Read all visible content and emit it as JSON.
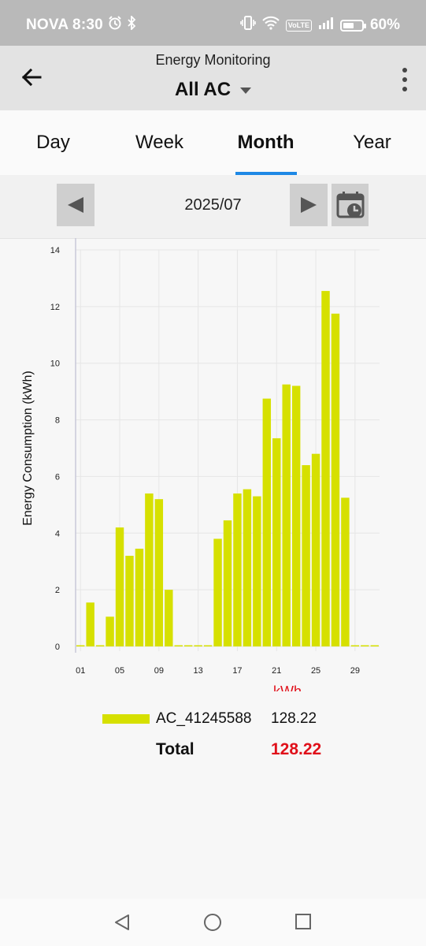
{
  "status_bar": {
    "carrier_time": "NOVA 8:30",
    "volte": "VoLTE",
    "battery": "60%",
    "battery_level": 0.6,
    "icons": [
      "alarm-icon",
      "bluetooth-icon",
      "vibrate-icon",
      "wifi-icon",
      "signal-icon",
      "battery-icon"
    ]
  },
  "app_bar": {
    "title": "Energy Monitoring",
    "selector": "All AC"
  },
  "tabs": [
    {
      "label": "Day",
      "active": false
    },
    {
      "label": "Week",
      "active": false
    },
    {
      "label": "Month",
      "active": true
    },
    {
      "label": "Year",
      "active": false
    }
  ],
  "date_nav": {
    "date": "2025/07"
  },
  "colors": {
    "bar": "#d6e000",
    "accent": "#1e88e5",
    "total": "#e0101a",
    "unit": "#e0101a"
  },
  "chart_data": {
    "type": "bar",
    "ylabel": "Energy Consumption (kWh)",
    "unit_label": "kWh",
    "ylim": [
      0,
      14
    ],
    "y_ticks": [
      "0",
      "2",
      "4",
      "6",
      "8",
      "10",
      "12",
      "14"
    ],
    "x_ticks": [
      "01",
      "05",
      "09",
      "13",
      "17",
      "21",
      "25",
      "29"
    ],
    "grid": true,
    "categories": [
      "01",
      "02",
      "03",
      "04",
      "05",
      "06",
      "07",
      "08",
      "09",
      "10",
      "11",
      "12",
      "13",
      "14",
      "15",
      "16",
      "17",
      "18",
      "19",
      "20",
      "21",
      "22",
      "23",
      "24",
      "25",
      "26",
      "27",
      "28",
      "29",
      "30",
      "31"
    ],
    "series": [
      {
        "name": "AC_41245588",
        "values": [
          0,
          1.55,
          0,
          1.05,
          4.2,
          3.2,
          3.45,
          5.4,
          5.2,
          2.0,
          0,
          0,
          0,
          0,
          3.8,
          4.45,
          5.4,
          5.55,
          5.3,
          8.75,
          7.35,
          9.25,
          9.2,
          6.4,
          6.8,
          12.55,
          11.75,
          5.25,
          0,
          0,
          0
        ]
      }
    ]
  },
  "legend": {
    "series_name": "AC_41245588",
    "series_value": "128.22",
    "total_label": "Total",
    "total_value": "128.22"
  },
  "nav_bar": {
    "icons": [
      "back-nav-icon",
      "home-nav-icon",
      "recents-nav-icon"
    ]
  }
}
